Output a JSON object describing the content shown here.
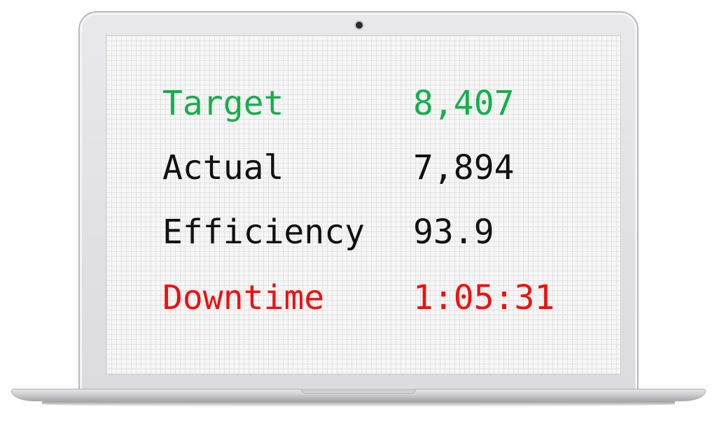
{
  "metrics": [
    {
      "label": "Target",
      "value": "8,407",
      "color": "#12b04c"
    },
    {
      "label": "Actual",
      "value": "7,894",
      "color": "#111111"
    },
    {
      "label": "Efficiency",
      "value": "93.9",
      "color": "#111111"
    },
    {
      "label": "Downtime",
      "value": "1:05:31",
      "color": "#ee1111"
    }
  ]
}
